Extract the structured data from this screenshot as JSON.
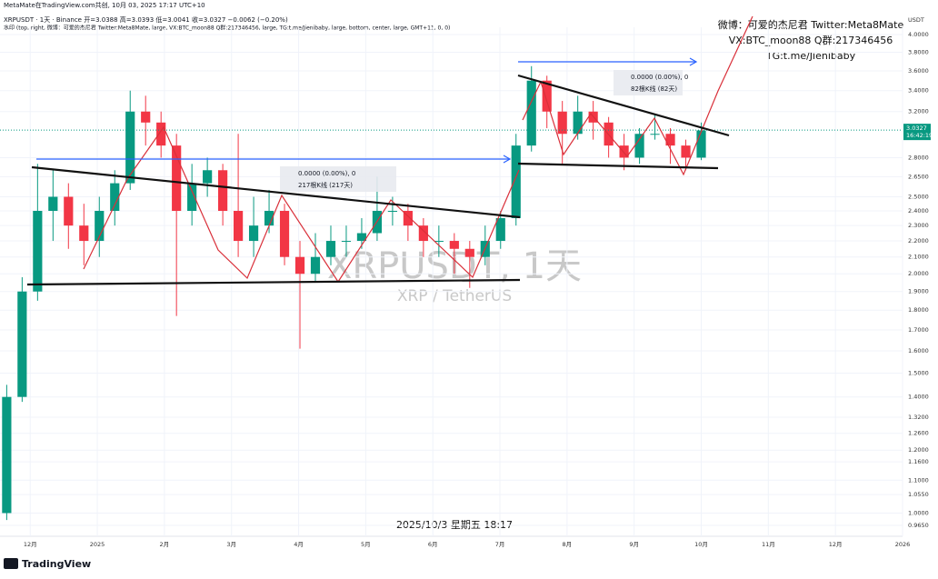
{
  "header": {
    "watermark_credit": "MetaMate在TradingView.com共创, 10月 03, 2025 17:17 UTC+10",
    "legend_line": "XRPUSDT · 1天 · Binance  开=3.0388  高=3.0393  低=3.0041  收=3.0327  −0.0062 (−0.20%)",
    "indicator_line": "水印 (top, right, 微博：可爱的杰尼君 Twitter:Meta8Mate, large, VX:BTC_moon88 Q群:217346456, large, TG:t.me/Jienibaby, large, bottom, center, large, GMT+11, 0, 0)"
  },
  "annotations": {
    "line1": "微博：可爱的杰尼君 Twitter:Meta8Mate",
    "line2": "VX:BTC_moon88 Q群:217346456",
    "line3": "TG:t.me/Jienibaby",
    "watermark": "XRPUSDT, 1天",
    "watermark_sub": "XRP / TetherUS",
    "date_stamp": "2025/10/3 星期五 18:17",
    "measure1_change": "0.0000 (0.00%), 0",
    "measure1_bars": "217根K线 (217天)",
    "measure2_change": "0.0000 (0.00%), 0",
    "measure2_bars": "82根K线 (82天)"
  },
  "price_axis": {
    "unit": "USDT",
    "last_price": "3.0327",
    "countdown": "16:42:19"
  },
  "footer": {
    "brand": "TradingView"
  },
  "chart_data": {
    "type": "candlestick",
    "log_scale": true,
    "up_color": "#089981",
    "down_color": "#f23645",
    "x": [
      -0.35,
      -0.12,
      0.11,
      0.34,
      0.57,
      0.8,
      1.03,
      1.26,
      1.49,
      1.72,
      1.95,
      2.18,
      2.41,
      2.64,
      2.87,
      3.1,
      3.33,
      3.56,
      3.79,
      4.02,
      4.25,
      4.48,
      4.71,
      4.94,
      5.17,
      5.4,
      5.63,
      5.86,
      6.09,
      6.32,
      6.55,
      6.78,
      7.01,
      7.24,
      7.47,
      7.7,
      7.93,
      8.16,
      8.39,
      8.62,
      8.85,
      9.08,
      9.31,
      9.54,
      9.77,
      10.0
    ],
    "open": [
      1.0,
      1.4,
      1.9,
      2.4,
      2.5,
      2.3,
      2.2,
      2.4,
      2.6,
      3.2,
      3.1,
      2.9,
      2.4,
      2.6,
      2.7,
      2.4,
      2.2,
      2.3,
      2.4,
      2.1,
      2.0,
      2.1,
      2.2,
      2.2,
      2.25,
      2.4,
      2.4,
      2.3,
      2.2,
      2.2,
      2.15,
      2.1,
      2.2,
      2.35,
      2.9,
      3.5,
      3.2,
      3.0,
      3.2,
      3.1,
      2.9,
      2.8,
      3.0,
      3.0,
      2.9,
      2.8
    ],
    "high": [
      1.45,
      1.98,
      2.75,
      2.7,
      2.6,
      2.45,
      2.5,
      2.7,
      3.4,
      3.35,
      3.2,
      3.0,
      2.75,
      2.8,
      2.75,
      3.0,
      2.5,
      2.55,
      2.45,
      2.2,
      2.25,
      2.3,
      2.3,
      2.35,
      2.65,
      2.5,
      2.45,
      2.35,
      2.3,
      2.25,
      2.2,
      2.3,
      2.4,
      3.0,
      3.65,
      3.55,
      3.3,
      3.35,
      3.3,
      3.15,
      3.0,
      3.05,
      3.18,
      3.05,
      2.95,
      3.1
    ],
    "low": [
      0.98,
      1.38,
      1.85,
      2.2,
      2.15,
      2.05,
      2.1,
      2.3,
      2.55,
      2.9,
      2.8,
      1.77,
      2.3,
      2.5,
      2.3,
      2.1,
      2.1,
      2.25,
      2.05,
      1.61,
      1.95,
      2.05,
      2.1,
      2.15,
      2.2,
      2.3,
      2.2,
      2.1,
      2.1,
      2.0,
      1.92,
      2.05,
      2.15,
      2.3,
      2.85,
      3.05,
      2.75,
      2.95,
      2.95,
      2.8,
      2.7,
      2.75,
      2.95,
      2.75,
      2.7,
      2.78
    ],
    "close": [
      1.4,
      1.9,
      2.4,
      2.5,
      2.3,
      2.2,
      2.4,
      2.6,
      3.2,
      3.1,
      2.9,
      2.4,
      2.6,
      2.7,
      2.4,
      2.2,
      2.3,
      2.4,
      2.1,
      2.0,
      2.1,
      2.2,
      2.2,
      2.25,
      2.4,
      2.4,
      2.3,
      2.2,
      2.2,
      2.15,
      2.1,
      2.2,
      2.35,
      2.9,
      3.5,
      3.2,
      3.0,
      3.2,
      3.1,
      2.9,
      2.8,
      3.0,
      3.0,
      2.9,
      2.8,
      3.03
    ],
    "xlim": [
      -0.45,
      13.0
    ],
    "xticks": [
      {
        "value": 0,
        "label": "12月"
      },
      {
        "value": 1,
        "label": "2025"
      },
      {
        "value": 2,
        "label": "2月"
      },
      {
        "value": 3,
        "label": "3月"
      },
      {
        "value": 4,
        "label": "4月"
      },
      {
        "value": 5,
        "label": "5月"
      },
      {
        "value": 6,
        "label": "6月"
      },
      {
        "value": 7,
        "label": "7月"
      },
      {
        "value": 8,
        "label": "8月"
      },
      {
        "value": 9,
        "label": "9月"
      },
      {
        "value": 10,
        "label": "10月"
      },
      {
        "value": 11,
        "label": "11月"
      },
      {
        "value": 12,
        "label": "12月"
      },
      {
        "value": 13,
        "label": "2026"
      }
    ],
    "ylim": [
      0.965,
      4.0
    ],
    "yticks": [
      {
        "value": 4,
        "label": "4.0000"
      },
      {
        "value": 3.8,
        "label": "3.8000"
      },
      {
        "value": 3.6,
        "label": "3.6000"
      },
      {
        "value": 3.4,
        "label": "3.4000"
      },
      {
        "value": 3.2,
        "label": "3.2000"
      },
      {
        "value": 2.8,
        "label": "2.8000"
      },
      {
        "value": 2.65,
        "label": "2.6500"
      },
      {
        "value": 2.5,
        "label": "2.5000"
      },
      {
        "value": 2.4,
        "label": "2.4000"
      },
      {
        "value": 2.3,
        "label": "2.3000"
      },
      {
        "value": 2.2,
        "label": "2.2000"
      },
      {
        "value": 2.1,
        "label": "2.1000"
      },
      {
        "value": 2,
        "label": "2.0000"
      },
      {
        "value": 1.9,
        "label": "1.9000"
      },
      {
        "value": 1.8,
        "label": "1.8000"
      },
      {
        "value": 1.7,
        "label": "1.7000"
      },
      {
        "value": 1.6,
        "label": "1.6000"
      },
      {
        "value": 1.5,
        "label": "1.5000"
      },
      {
        "value": 1.4,
        "label": "1.4000"
      },
      {
        "value": 1.32,
        "label": "1.3200"
      },
      {
        "value": 1.26,
        "label": "1.2600"
      },
      {
        "value": 1.2,
        "label": "1.2000"
      },
      {
        "value": 1.16,
        "label": "1.1600"
      },
      {
        "value": 1.1,
        "label": "1.1000"
      },
      {
        "value": 1.055,
        "label": "1.0550"
      },
      {
        "value": 1,
        "label": "1.0000"
      },
      {
        "value": 0.965,
        "label": "0.9650"
      }
    ],
    "last_value": 3.0327
  }
}
